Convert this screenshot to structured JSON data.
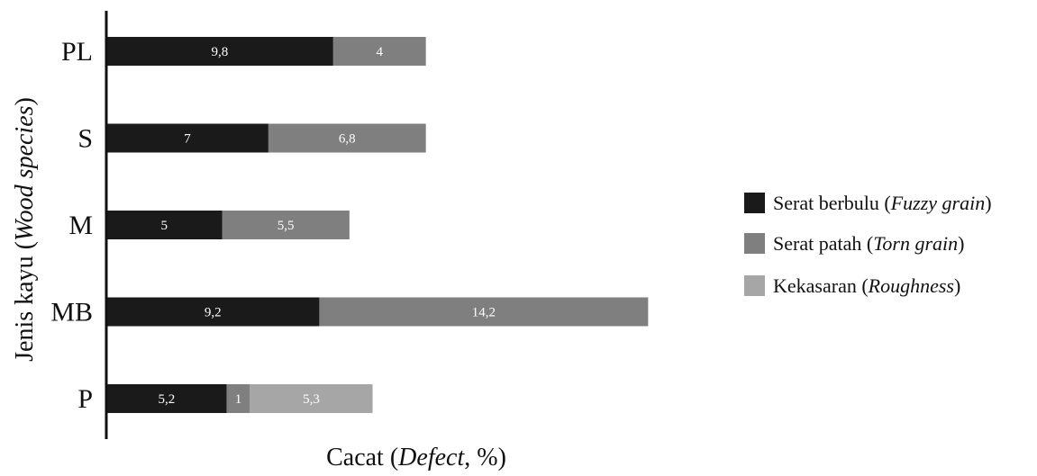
{
  "chart_data": {
    "type": "bar",
    "orientation": "horizontal",
    "stacked": true,
    "categories": [
      "PL",
      "S",
      "M",
      "MB",
      "P"
    ],
    "series": [
      {
        "name": "Serat berbulu",
        "name_en": "Fuzzy grain",
        "color": "#1a1a1a",
        "values": [
          9.8,
          7,
          5,
          9.2,
          5.2
        ],
        "labels": [
          "9,8",
          "7",
          "5",
          "9,2",
          "5,2"
        ]
      },
      {
        "name": "Serat patah",
        "name_en": "Torn grain",
        "color": "#7f7f80",
        "values": [
          4,
          6.8,
          5.5,
          14.2,
          1
        ],
        "labels": [
          "4",
          "6,8",
          "5,5",
          "14,2",
          "1"
        ]
      },
      {
        "name": "Kekasaran",
        "name_en": "Roughness",
        "color": "#a6a6a6",
        "values": [
          0,
          0,
          0,
          0,
          5.3
        ],
        "labels": [
          "",
          "",
          "",
          "",
          "5,3"
        ]
      }
    ],
    "xlabel": {
      "text": "Cacat",
      "italic": "Defect",
      "suffix": ", %"
    },
    "ylabel": {
      "text": "Jenis kayu",
      "italic": "Wood species"
    },
    "legend_position": "right",
    "grid": false
  }
}
